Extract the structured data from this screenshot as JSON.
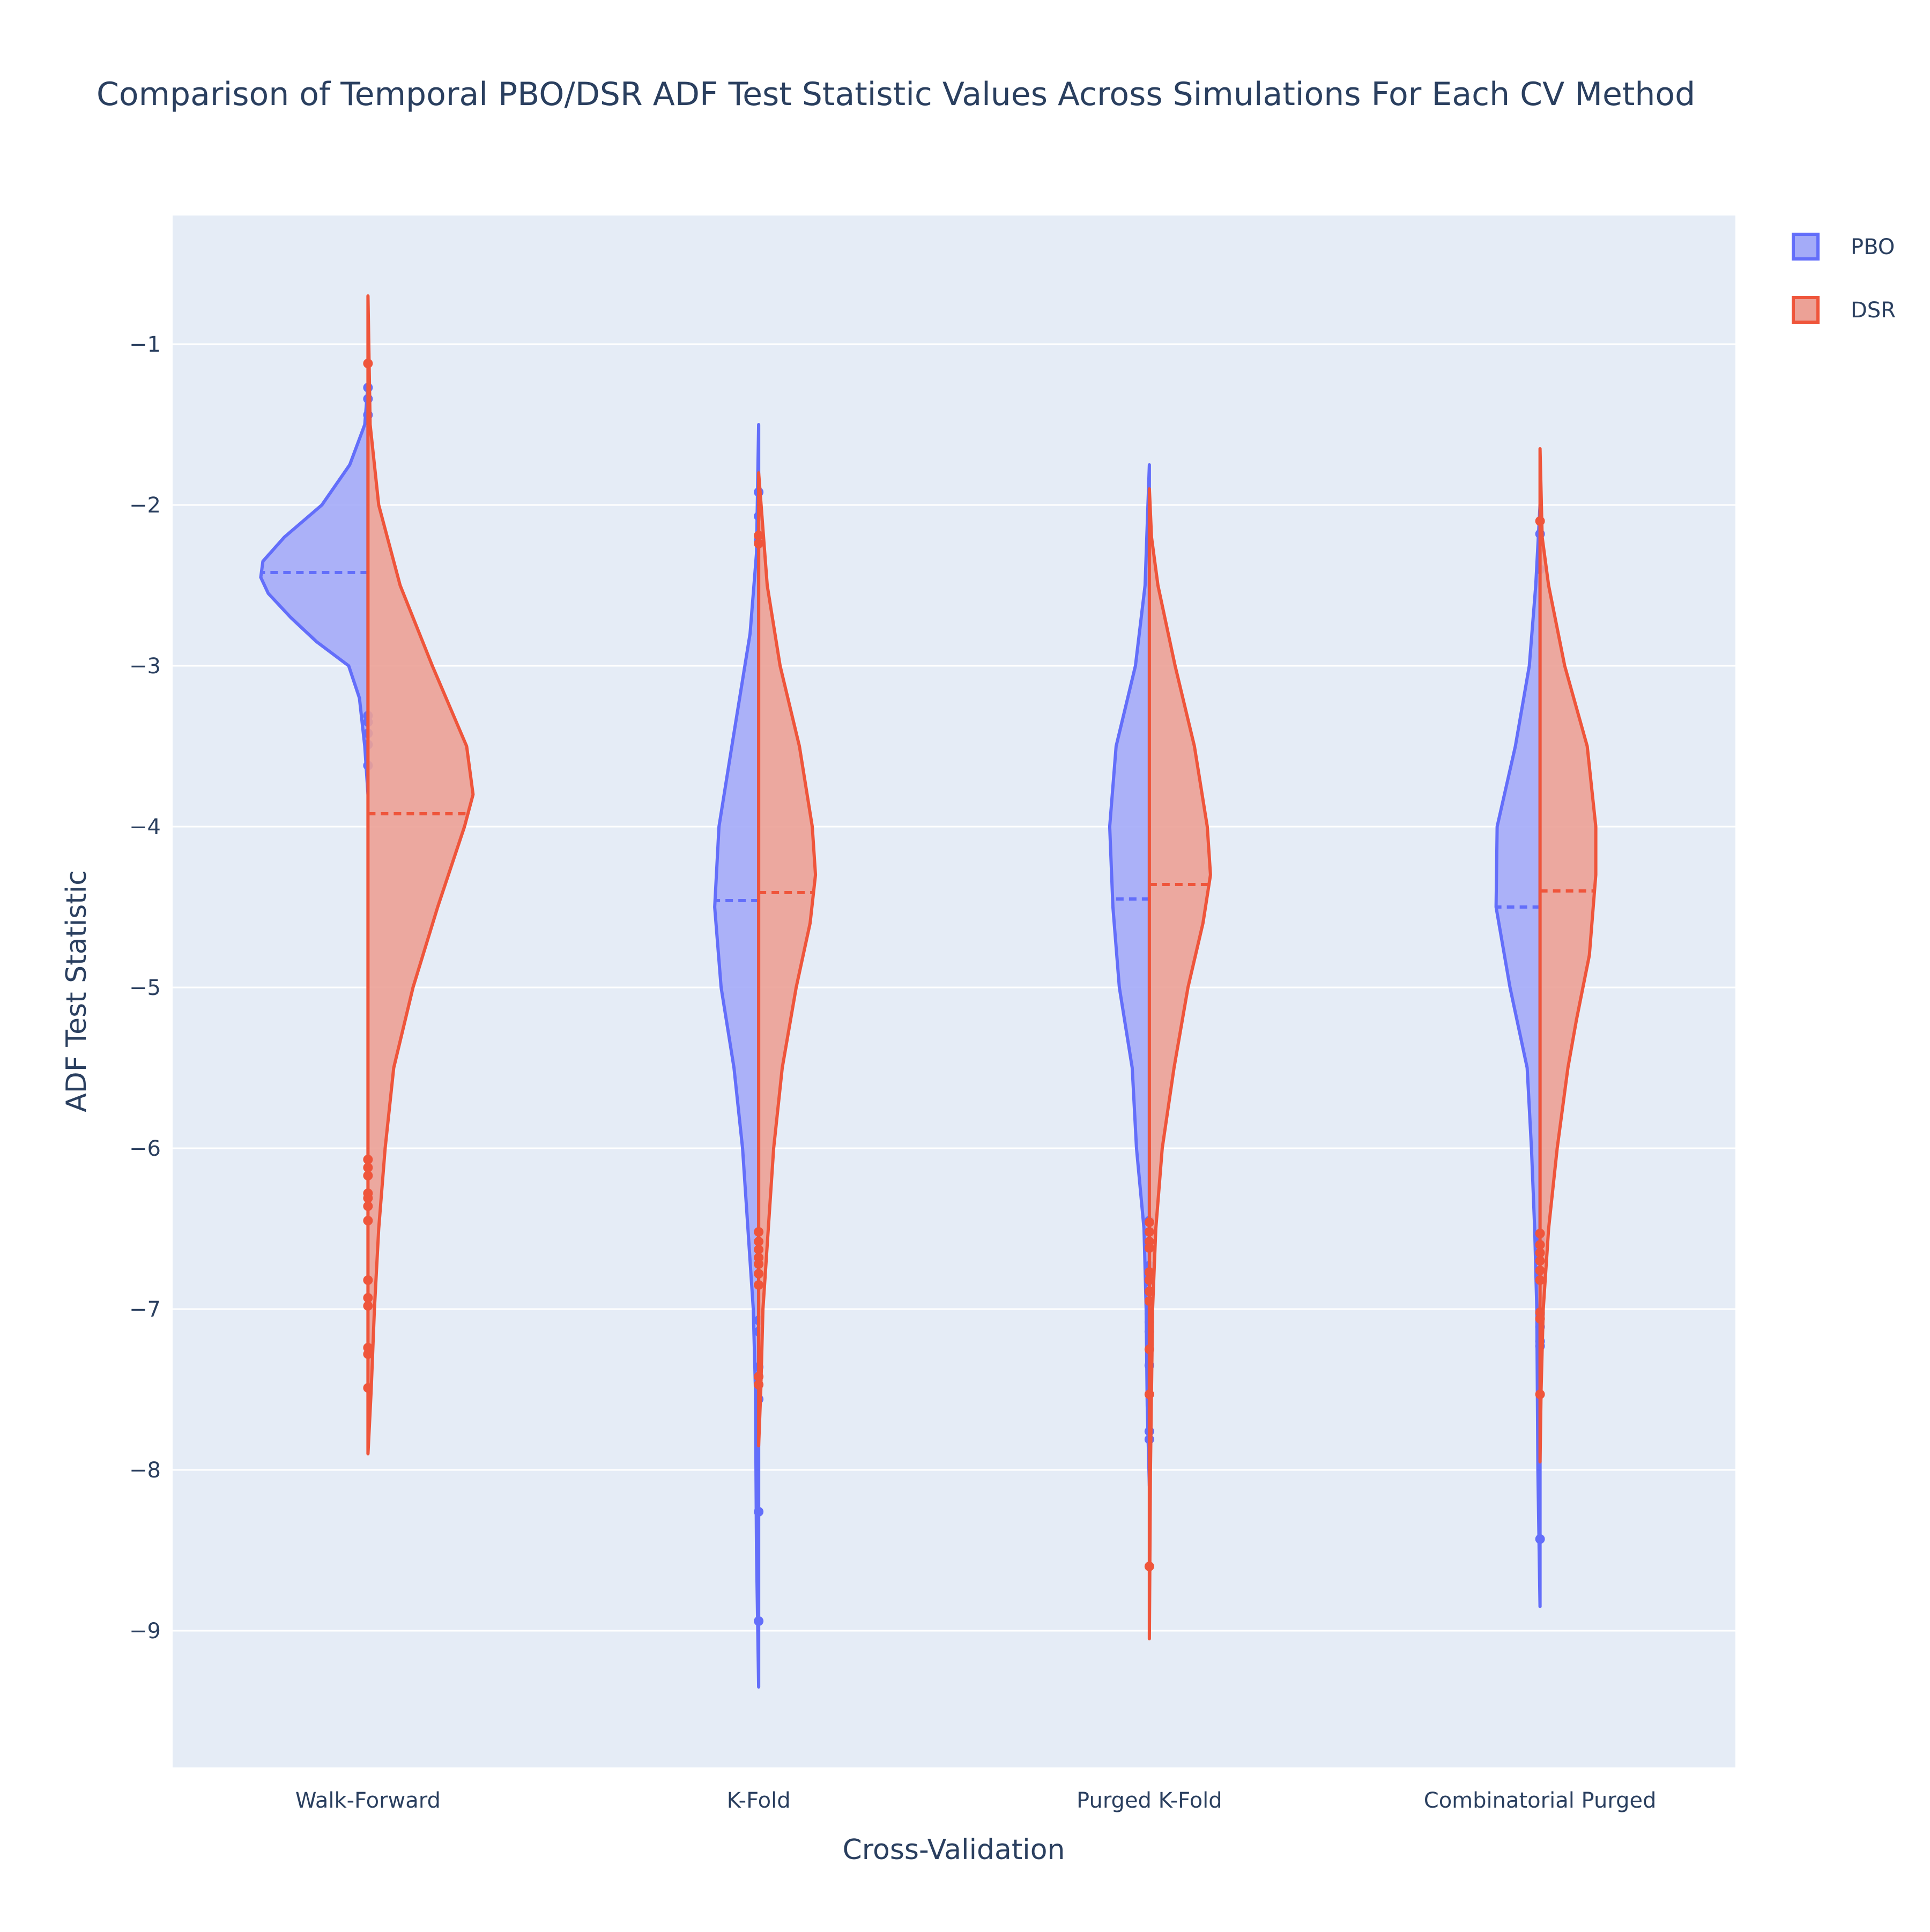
{
  "chart_data": {
    "type": "violin",
    "title": "Comparison of Temporal PBO/DSR ADF Test Statistic Values Across Simulations For Each CV Method",
    "xlabel": "Cross-Validation",
    "ylabel": "ADF Test Statistic",
    "categories": [
      "Walk-Forward",
      "K-Fold",
      "Purged K-Fold",
      "Combinatorial Purged"
    ],
    "ylim": [
      -9.85,
      -0.2
    ],
    "yticks": [
      -1,
      -2,
      -3,
      -4,
      -5,
      -6,
      -7,
      -8,
      -9
    ],
    "ytick_labels": [
      "−1",
      "−2",
      "−3",
      "−4",
      "−5",
      "−6",
      "−7",
      "−8",
      "−9"
    ],
    "grid": true,
    "legend_position": "top-right",
    "colors": {
      "plot_bg": "#e5ecf6",
      "grid": "#ffffff",
      "PBO_line": "#636efa",
      "PBO_fill": "#a4abf8",
      "DSR_line": "#ef553b",
      "DSR_fill": "#eca196"
    },
    "series": [
      {
        "name": "PBO",
        "side": "negative",
        "violins": [
          {
            "category": "Walk-Forward",
            "range": [
              -3.8,
              -1.25
            ],
            "mean": -2.42,
            "profile": [
              [
                -1.25,
                0.0
              ],
              [
                -1.5,
                0.03
              ],
              [
                -1.75,
                0.17
              ],
              [
                -2.0,
                0.43
              ],
              [
                -2.2,
                0.78
              ],
              [
                -2.35,
                0.98
              ],
              [
                -2.45,
                1.0
              ],
              [
                -2.55,
                0.93
              ],
              [
                -2.7,
                0.72
              ],
              [
                -2.85,
                0.48
              ],
              [
                -3.0,
                0.18
              ],
              [
                -3.2,
                0.08
              ],
              [
                -3.5,
                0.03
              ],
              [
                -3.8,
                0.0
              ]
            ],
            "points": [
              -1.27,
              -1.34,
              -1.44,
              -3.31,
              -3.35,
              -3.42,
              -3.49,
              -3.62
            ]
          },
          {
            "category": "K-Fold",
            "range": [
              -9.35,
              -1.5
            ],
            "mean": -4.46,
            "profile": [
              [
                -1.5,
                0.0
              ],
              [
                -2.3,
                0.02
              ],
              [
                -2.8,
                0.08
              ],
              [
                -3.5,
                0.25
              ],
              [
                -4.0,
                0.37
              ],
              [
                -4.5,
                0.41
              ],
              [
                -5.0,
                0.35
              ],
              [
                -5.5,
                0.23
              ],
              [
                -6.0,
                0.15
              ],
              [
                -6.5,
                0.1
              ],
              [
                -7.0,
                0.05
              ],
              [
                -7.5,
                0.03
              ],
              [
                -8.5,
                0.02
              ],
              [
                -9.35,
                0.0
              ]
            ],
            "points": [
              -1.92,
              -2.07,
              -2.22,
              -7.07,
              -7.14,
              -7.36,
              -7.56,
              -8.26,
              -8.94
            ]
          },
          {
            "category": "Purged K-Fold",
            "range": [
              -8.1,
              -1.75
            ],
            "mean": -4.45,
            "profile": [
              [
                -1.75,
                0.0
              ],
              [
                -2.5,
                0.04
              ],
              [
                -3.0,
                0.13
              ],
              [
                -3.5,
                0.31
              ],
              [
                -4.0,
                0.37
              ],
              [
                -4.5,
                0.34
              ],
              [
                -5.0,
                0.28
              ],
              [
                -5.5,
                0.16
              ],
              [
                -6.0,
                0.12
              ],
              [
                -6.5,
                0.05
              ],
              [
                -7.0,
                0.03
              ],
              [
                -7.6,
                0.02
              ],
              [
                -8.1,
                0.0
              ]
            ],
            "points": [
              -6.45,
              -6.58,
              -6.73,
              -6.83,
              -6.97,
              -7.03,
              -7.08,
              -7.14,
              -7.35,
              -7.76,
              -7.81
            ]
          },
          {
            "category": "Combinatorial Purged",
            "range": [
              -8.85,
              -2.0
            ],
            "mean": -4.5,
            "profile": [
              [
                -2.0,
                0.0
              ],
              [
                -2.5,
                0.04
              ],
              [
                -3.0,
                0.1
              ],
              [
                -3.5,
                0.23
              ],
              [
                -4.0,
                0.4
              ],
              [
                -4.5,
                0.41
              ],
              [
                -5.0,
                0.28
              ],
              [
                -5.5,
                0.12
              ],
              [
                -6.0,
                0.08
              ],
              [
                -6.5,
                0.05
              ],
              [
                -7.0,
                0.03
              ],
              [
                -8.0,
                0.02
              ],
              [
                -8.85,
                0.0
              ]
            ],
            "points": [
              -2.18,
              -2.4,
              -6.57,
              -6.8,
              -7.03,
              -7.11,
              -7.2,
              -7.23,
              -8.43
            ]
          }
        ]
      },
      {
        "name": "DSR",
        "side": "positive",
        "violins": [
          {
            "category": "Walk-Forward",
            "range": [
              -7.9,
              -0.7
            ],
            "mean": -3.92,
            "profile": [
              [
                -0.7,
                0.0
              ],
              [
                -1.5,
                0.02
              ],
              [
                -2.0,
                0.1
              ],
              [
                -2.5,
                0.3
              ],
              [
                -3.0,
                0.6
              ],
              [
                -3.5,
                0.92
              ],
              [
                -3.8,
                0.98
              ],
              [
                -4.0,
                0.9
              ],
              [
                -4.5,
                0.65
              ],
              [
                -5.0,
                0.42
              ],
              [
                -5.5,
                0.24
              ],
              [
                -6.0,
                0.16
              ],
              [
                -6.5,
                0.1
              ],
              [
                -7.0,
                0.06
              ],
              [
                -7.5,
                0.03
              ],
              [
                -7.9,
                0.0
              ]
            ],
            "points": [
              -1.12,
              -6.07,
              -6.12,
              -6.17,
              -6.28,
              -6.31,
              -6.36,
              -6.45,
              -6.82,
              -6.93,
              -6.98,
              -7.24,
              -7.28,
              -7.49
            ]
          },
          {
            "category": "K-Fold",
            "range": [
              -7.85,
              -1.8
            ],
            "mean": -4.41,
            "profile": [
              [
                -1.8,
                0.0
              ],
              [
                -2.5,
                0.08
              ],
              [
                -3.0,
                0.2
              ],
              [
                -3.5,
                0.38
              ],
              [
                -4.0,
                0.5
              ],
              [
                -4.3,
                0.53
              ],
              [
                -4.6,
                0.48
              ],
              [
                -5.0,
                0.35
              ],
              [
                -5.5,
                0.22
              ],
              [
                -6.0,
                0.14
              ],
              [
                -6.5,
                0.09
              ],
              [
                -7.0,
                0.04
              ],
              [
                -7.5,
                0.02
              ],
              [
                -7.85,
                0.0
              ]
            ],
            "points": [
              -2.19,
              -2.24,
              -6.52,
              -6.58,
              -6.63,
              -6.68,
              -6.72,
              -6.78,
              -6.85,
              -7.42,
              -7.47
            ]
          },
          {
            "category": "Purged K-Fold",
            "range": [
              -9.05,
              -1.9
            ],
            "mean": -4.36,
            "profile": [
              [
                -1.9,
                0.0
              ],
              [
                -2.2,
                0.02
              ],
              [
                -2.5,
                0.08
              ],
              [
                -3.0,
                0.24
              ],
              [
                -3.5,
                0.42
              ],
              [
                -4.0,
                0.54
              ],
              [
                -4.3,
                0.57
              ],
              [
                -4.6,
                0.5
              ],
              [
                -5.0,
                0.36
              ],
              [
                -5.5,
                0.23
              ],
              [
                -6.0,
                0.12
              ],
              [
                -6.5,
                0.06
              ],
              [
                -7.0,
                0.03
              ],
              [
                -8.0,
                0.01
              ],
              [
                -9.05,
                0.0
              ]
            ],
            "points": [
              -6.46,
              -6.52,
              -6.58,
              -6.62,
              -6.77,
              -6.82,
              -6.89,
              -6.95,
              -7.25,
              -7.53,
              -8.6
            ]
          },
          {
            "category": "Combinatorial Purged",
            "range": [
              -7.95,
              -1.65
            ],
            "mean": -4.4,
            "profile": [
              [
                -1.65,
                0.0
              ],
              [
                -2.2,
                0.02
              ],
              [
                -2.5,
                0.08
              ],
              [
                -3.0,
                0.23
              ],
              [
                -3.5,
                0.44
              ],
              [
                -4.0,
                0.52
              ],
              [
                -4.3,
                0.52
              ],
              [
                -4.8,
                0.46
              ],
              [
                -5.2,
                0.34
              ],
              [
                -5.5,
                0.26
              ],
              [
                -6.0,
                0.16
              ],
              [
                -6.5,
                0.08
              ],
              [
                -7.0,
                0.03
              ],
              [
                -7.5,
                0.01
              ],
              [
                -7.95,
                0.0
              ]
            ],
            "points": [
              -2.1,
              -6.53,
              -6.6,
              -6.65,
              -6.7,
              -6.76,
              -6.82,
              -7.02,
              -7.06,
              -7.53
            ]
          }
        ]
      }
    ]
  }
}
